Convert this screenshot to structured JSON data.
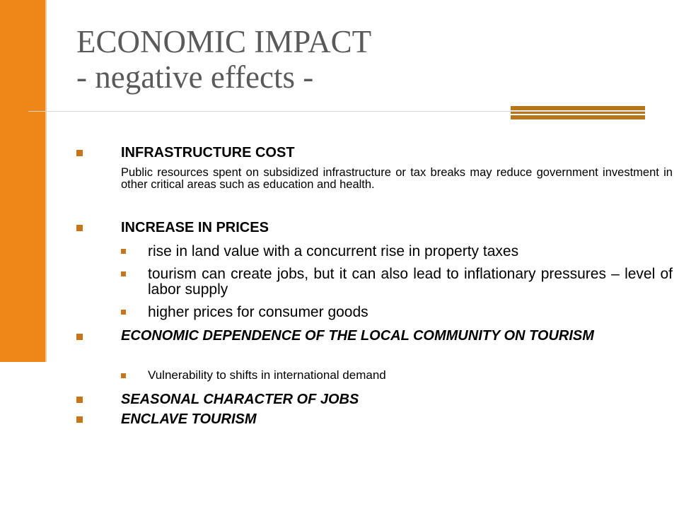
{
  "slide": {
    "title_line1": "ECONOMIC IMPACT",
    "title_line2": "- negative effects -",
    "accent_color": "#ef8618",
    "bullet_color": "#c7751c",
    "items": [
      {
        "heading": "INFRASTRUCTURE COST",
        "description": "Public resources spent on subsidized infrastructure or tax breaks may reduce government investment in other critical areas such as education and health."
      },
      {
        "heading": "INCREASE IN PRICES",
        "subitems": [
          "rise in land value with a concurrent rise in property taxes",
          "tourism can create jobs, but it can also lead to inflationary pressures – level of labor supply",
          "higher prices for consumer goods"
        ]
      },
      {
        "heading": "ECONOMIC DEPENDENCE OF THE LOCAL COMMUNITY ON TOURISM",
        "subitems": [
          "Vulnerability to shifts in international demand"
        ]
      },
      {
        "heading": "SEASONAL CHARACTER OF JOBS"
      },
      {
        "heading": "ENCLAVE TOURISM"
      }
    ]
  }
}
